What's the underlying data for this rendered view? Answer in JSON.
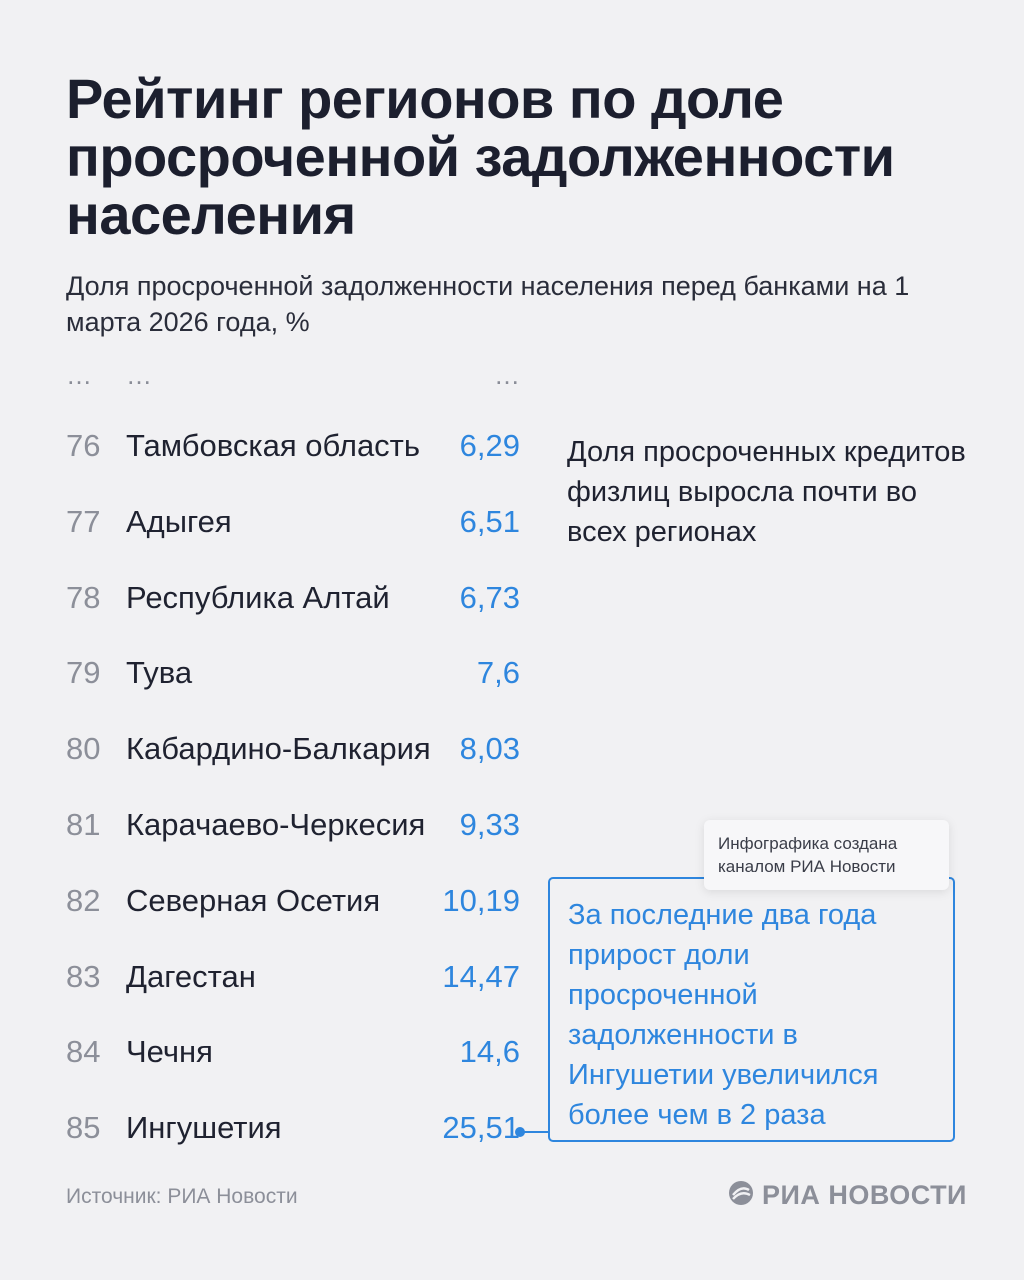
{
  "title": "Рейтинг регионов по доле просроченной задолженности населения",
  "subtitle": "Доля просроченной задолженности населения перед банками на 1 марта 2026 года, %",
  "ellipsis": "…",
  "rows": [
    {
      "rank": "76",
      "region": "Тамбовская область",
      "value": "6,29"
    },
    {
      "rank": "77",
      "region": "Адыгея",
      "value": "6,51"
    },
    {
      "rank": "78",
      "region": "Республика Алтай",
      "value": "6,73"
    },
    {
      "rank": "79",
      "region": "Тува",
      "value": "7,6"
    },
    {
      "rank": "80",
      "region": "Кабардино-Балкария",
      "value": "8,03"
    },
    {
      "rank": "81",
      "region": "Карачаево-Черкесия",
      "value": "9,33"
    },
    {
      "rank": "82",
      "region": "Северная Осетия",
      "value": "10,19"
    },
    {
      "rank": "83",
      "region": "Дагестан",
      "value": "14,47"
    },
    {
      "rank": "84",
      "region": "Чечня",
      "value": "14,6"
    },
    {
      "rank": "85",
      "region": "Ингушетия",
      "value": "25,51"
    }
  ],
  "note": "Доля просроченных кредитов физлиц выросла почти во всех регионах",
  "watermark": "Инфографика создана каналом РИА Новости",
  "callout": "За последние два года прирост доли просроченной задолженности в Ингушетии увеличился более чем в 2 раза",
  "source": "Источник: РИА Новости",
  "logo": {
    "text": "РИА НОВОСТИ",
    "icon": "ria-novosti-logo-icon"
  },
  "colors": {
    "accent": "#2e86de",
    "text": "#1f2230",
    "muted": "#8c8f99",
    "background": "#f1f1f3"
  }
}
